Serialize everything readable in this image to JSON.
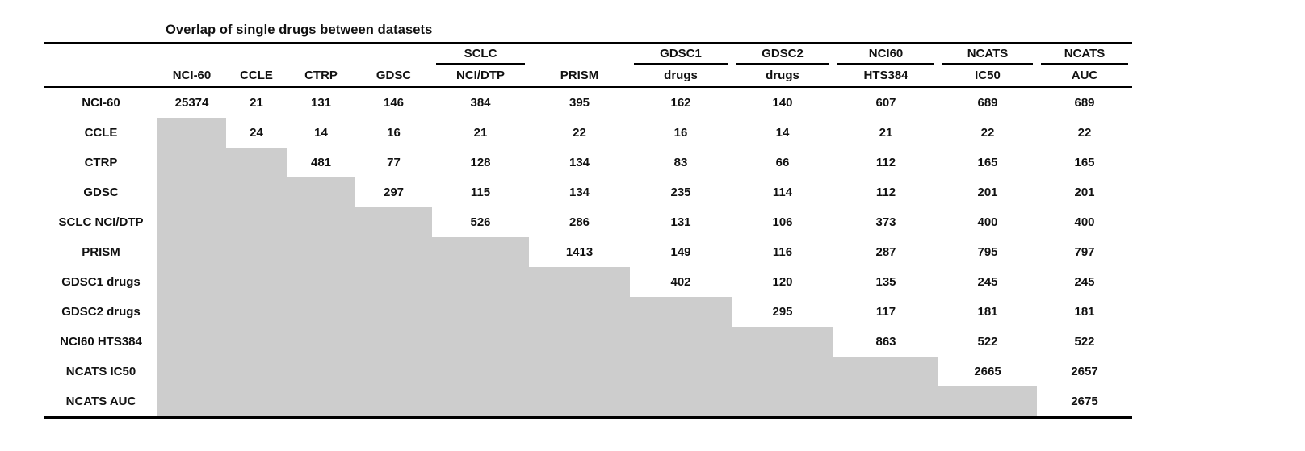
{
  "title": "Overlap of single drugs between datasets",
  "colors": {
    "masked_cell": "#cdcdcd",
    "rule": "#000000",
    "background": "#ffffff",
    "text": "#111111"
  },
  "table": {
    "columns": [
      {
        "group": "",
        "name": "NCI-60"
      },
      {
        "group": "",
        "name": "CCLE"
      },
      {
        "group": "",
        "name": "CTRP"
      },
      {
        "group": "",
        "name": "GDSC"
      },
      {
        "group": "SCLC",
        "name": "NCI/DTP"
      },
      {
        "group": "",
        "name": "PRISM"
      },
      {
        "group": "GDSC1",
        "name": "drugs"
      },
      {
        "group": "GDSC2",
        "name": "drugs"
      },
      {
        "group": "NCI60",
        "name": "HTS384"
      },
      {
        "group": "NCATS",
        "name": "IC50"
      },
      {
        "group": "NCATS",
        "name": "AUC"
      }
    ],
    "rows": [
      {
        "label": "NCI-60",
        "values": [
          "25374",
          "21",
          "131",
          "146",
          "384",
          "395",
          "162",
          "140",
          "607",
          "689",
          "689"
        ]
      },
      {
        "label": "CCLE",
        "values": [
          null,
          "24",
          "14",
          "16",
          "21",
          "22",
          "16",
          "14",
          "21",
          "22",
          "22"
        ]
      },
      {
        "label": "CTRP",
        "values": [
          null,
          null,
          "481",
          "77",
          "128",
          "134",
          "83",
          "66",
          "112",
          "165",
          "165"
        ]
      },
      {
        "label": "GDSC",
        "values": [
          null,
          null,
          null,
          "297",
          "115",
          "134",
          "235",
          "114",
          "112",
          "201",
          "201"
        ]
      },
      {
        "label": "SCLC NCI/DTP",
        "values": [
          null,
          null,
          null,
          null,
          "526",
          "286",
          "131",
          "106",
          "373",
          "400",
          "400"
        ]
      },
      {
        "label": "PRISM",
        "values": [
          null,
          null,
          null,
          null,
          null,
          "1413",
          "149",
          "116",
          "287",
          "795",
          "797"
        ]
      },
      {
        "label": "GDSC1 drugs",
        "values": [
          null,
          null,
          null,
          null,
          null,
          null,
          "402",
          "120",
          "135",
          "245",
          "245"
        ]
      },
      {
        "label": "GDSC2 drugs",
        "values": [
          null,
          null,
          null,
          null,
          null,
          null,
          null,
          "295",
          "117",
          "181",
          "181"
        ]
      },
      {
        "label": "NCI60 HTS384",
        "values": [
          null,
          null,
          null,
          null,
          null,
          null,
          null,
          null,
          "863",
          "522",
          "522"
        ]
      },
      {
        "label": "NCATS IC50",
        "values": [
          null,
          null,
          null,
          null,
          null,
          null,
          null,
          null,
          null,
          "2665",
          "2657"
        ]
      },
      {
        "label": "NCATS AUC",
        "values": [
          null,
          null,
          null,
          null,
          null,
          null,
          null,
          null,
          null,
          null,
          "2675"
        ]
      }
    ]
  }
}
